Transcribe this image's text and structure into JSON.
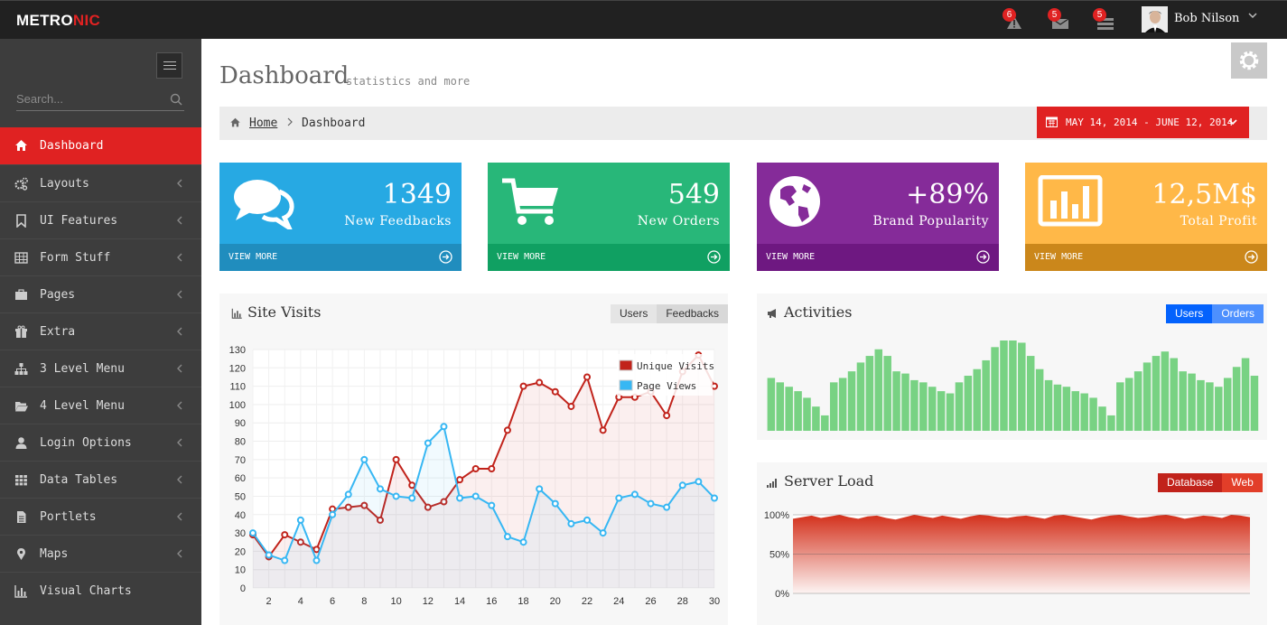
{
  "topbar": {
    "logo_main": "METRO",
    "logo_accent": "NIC",
    "notifications": [
      {
        "name": "alerts",
        "count": "6"
      },
      {
        "name": "inbox",
        "count": "5"
      },
      {
        "name": "tasks",
        "count": "5"
      }
    ],
    "user_name": "Bob Nilson"
  },
  "sidebar": {
    "search_placeholder": "Search...",
    "items": [
      {
        "label": "Dashboard",
        "icon": "home-icon",
        "active": true
      },
      {
        "label": "Layouts",
        "icon": "cogs-icon"
      },
      {
        "label": "UI Features",
        "icon": "bookmark-icon"
      },
      {
        "label": "Form Stuff",
        "icon": "table-icon"
      },
      {
        "label": "Pages",
        "icon": "briefcase-icon"
      },
      {
        "label": "Extra",
        "icon": "gift-icon"
      },
      {
        "label": "3 Level Menu",
        "icon": "sitemap-icon"
      },
      {
        "label": "4 Level Menu",
        "icon": "folder-open-icon"
      },
      {
        "label": "Login Options",
        "icon": "user-icon"
      },
      {
        "label": "Data Tables",
        "icon": "grid-icon"
      },
      {
        "label": "Portlets",
        "icon": "file-icon"
      },
      {
        "label": "Maps",
        "icon": "map-marker-icon"
      },
      {
        "label": "Visual Charts",
        "icon": "bar-chart-icon"
      }
    ]
  },
  "page": {
    "title": "Dashboard",
    "subtitle": "statistics and more",
    "breadcrumb_home": "Home",
    "breadcrumb_current": "Dashboard",
    "date_range": "MAY 14, 2014 - JUNE 12, 2014"
  },
  "stats": [
    {
      "number": "1349",
      "label": "New Feedbacks",
      "more": "VIEW MORE",
      "color": "#27a9e3",
      "footer_color": "#208dbe",
      "icon": "comments-icon"
    },
    {
      "number": "549",
      "label": "New Orders",
      "more": "VIEW MORE",
      "color": "#28b779",
      "footer_color": "#10a062",
      "icon": "shopping-cart-icon"
    },
    {
      "number": "+89%",
      "label": "Brand Popularity",
      "more": "VIEW MORE",
      "color": "#852b99",
      "footer_color": "#6e1881",
      "icon": "globe-icon"
    },
    {
      "number": "12,5M$",
      "label": "Total Profit",
      "more": "VIEW MORE",
      "color": "#ffb848",
      "footer_color": "#cb871b",
      "icon": "bar-chart-icon"
    }
  ],
  "site_visits": {
    "title": "Site Visits",
    "buttons": [
      "Users",
      "Feedbacks"
    ]
  },
  "activities": {
    "title": "Activities",
    "buttons": [
      "Users",
      "Orders"
    ]
  },
  "server_load": {
    "title": "Server Load",
    "buttons": [
      "Database",
      "Web"
    ]
  },
  "chart_data": [
    {
      "type": "line",
      "x": [
        1,
        2,
        3,
        4,
        5,
        6,
        7,
        8,
        9,
        10,
        11,
        12,
        13,
        14,
        15,
        16,
        17,
        18,
        19,
        20,
        21,
        22,
        23,
        24,
        25,
        26,
        27,
        28,
        29,
        30
      ],
      "xticks": [
        2,
        4,
        6,
        8,
        10,
        12,
        14,
        16,
        18,
        20,
        22,
        24,
        26,
        28,
        30
      ],
      "ylim": [
        0,
        130
      ],
      "yticks": [
        0,
        10,
        20,
        30,
        40,
        50,
        60,
        70,
        80,
        90,
        100,
        110,
        120,
        130
      ],
      "grid": true,
      "legend": "top-right",
      "series": [
        {
          "name": "Unique Visits",
          "color": "#c1231b",
          "values": [
            29,
            17,
            29,
            25,
            21,
            43,
            44,
            45,
            37,
            70,
            56,
            44,
            47,
            59,
            65,
            65,
            86,
            110,
            112,
            107,
            99,
            115,
            86,
            104,
            104,
            107,
            94,
            118,
            127,
            110
          ]
        },
        {
          "name": "Page Views",
          "color": "#37b7f3",
          "values": [
            30,
            18,
            15,
            37,
            15,
            40,
            51,
            70,
            54,
            50,
            49,
            79,
            88,
            49,
            50,
            45,
            28,
            25,
            54,
            46,
            35,
            37,
            30,
            49,
            51,
            46,
            44,
            56,
            58,
            49
          ]
        }
      ]
    },
    {
      "type": "bar",
      "color": "#78d283",
      "values": [
        24,
        22,
        20,
        18,
        15,
        11,
        7,
        22,
        24,
        27,
        31,
        34,
        37,
        34,
        27,
        26,
        23,
        22,
        20,
        18,
        17,
        22,
        25,
        28,
        32,
        38,
        41,
        41,
        40,
        34,
        28,
        23,
        21,
        20,
        18,
        17,
        15,
        11,
        7,
        22,
        24,
        27,
        31,
        34,
        36,
        33,
        27,
        26,
        23,
        22,
        20,
        24,
        29,
        33,
        25
      ]
    },
    {
      "type": "area",
      "yticks": [
        "100%",
        "50%",
        "0%"
      ],
      "ylim": [
        0,
        100
      ],
      "color": "#d12610",
      "values": [
        95,
        97,
        99,
        96,
        98,
        100,
        97,
        95,
        98,
        99,
        96,
        94,
        97,
        100,
        98,
        96,
        99,
        97,
        95,
        98,
        100,
        99,
        97,
        96,
        98,
        99,
        97,
        95,
        99,
        100,
        98,
        96,
        94,
        97,
        99,
        100,
        98,
        96,
        97,
        99,
        100,
        98,
        95,
        97,
        99,
        98,
        96,
        100,
        99,
        97
      ]
    }
  ]
}
